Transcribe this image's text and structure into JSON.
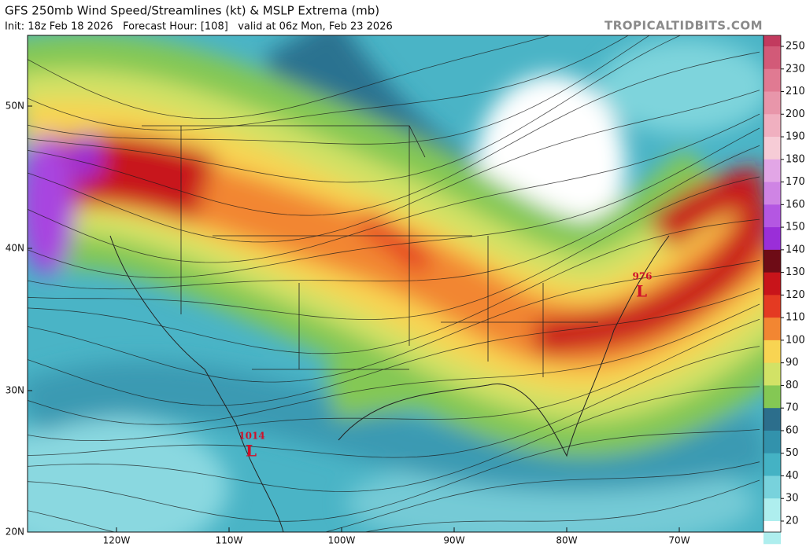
{
  "header": {
    "title": "GFS 250mb Wind Speed/Streamlines (kt) & MSLP Extrema (mb)",
    "subtitle": "Init: 18z Feb 18 2026   Forecast Hour: [108]   valid at 06z Mon, Feb 23 2026",
    "source": "TROPICALTIDBITS.COM"
  },
  "map": {
    "lat_labels": [
      "50N",
      "40N",
      "30N",
      "20N"
    ],
    "lon_labels": [
      "120W",
      "110W",
      "100W",
      "90W",
      "80W",
      "70W"
    ],
    "lows": [
      {
        "pressure": "1014",
        "symbol": "L"
      },
      {
        "pressure": "976",
        "symbol": "L"
      }
    ]
  },
  "colorbar": {
    "labels": [
      "250",
      "230",
      "210",
      "200",
      "190",
      "180",
      "170",
      "160",
      "150",
      "140",
      "130",
      "120",
      "110",
      "100",
      "90",
      "80",
      "70",
      "60",
      "50",
      "40",
      "30",
      "20"
    ],
    "colors": [
      "#c23a5e",
      "#d25a78",
      "#e07a92",
      "#e896aa",
      "#f0b0c0",
      "#f6ccd6",
      "#e2a6e6",
      "#cf84e4",
      "#b457e2",
      "#9a2ed8",
      "#6e0c16",
      "#c8141a",
      "#e43a22",
      "#f28632",
      "#f8d452",
      "#d2e266",
      "#84c854",
      "#2c6e8c",
      "#3292ac",
      "#44b2c4",
      "#78d2dc",
      "#aeeeee"
    ]
  }
}
